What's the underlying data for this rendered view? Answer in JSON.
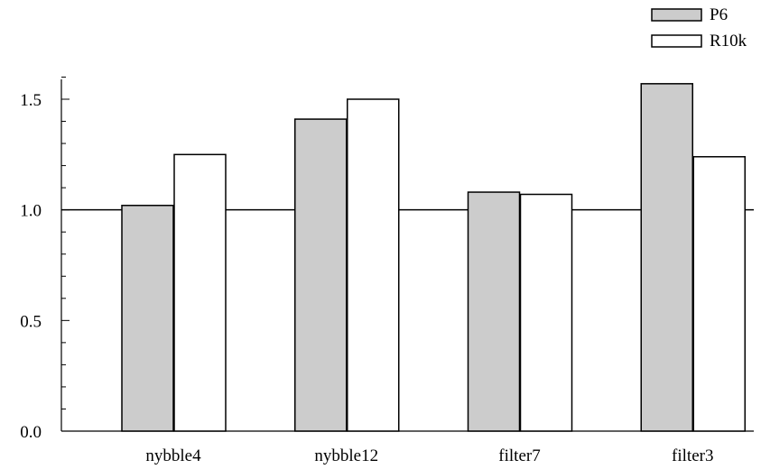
{
  "chart_data": {
    "type": "bar",
    "title": "",
    "xlabel": "",
    "ylabel": "",
    "categories": [
      "nybble4",
      "nybble12",
      "filter7",
      "filter3"
    ],
    "series": [
      {
        "name": "P6",
        "color": "#cccccc",
        "values": [
          1.02,
          1.41,
          1.08,
          1.57
        ]
      },
      {
        "name": "R10k",
        "color": "#ffffff",
        "values": [
          1.25,
          1.5,
          1.07,
          1.24
        ]
      }
    ],
    "ylim": [
      0,
      1.6
    ],
    "yticks": [
      "0.0",
      "0.5",
      "1.0",
      "1.5"
    ],
    "reference_line": 1.0,
    "grid": false,
    "legend_position": "top-right"
  }
}
